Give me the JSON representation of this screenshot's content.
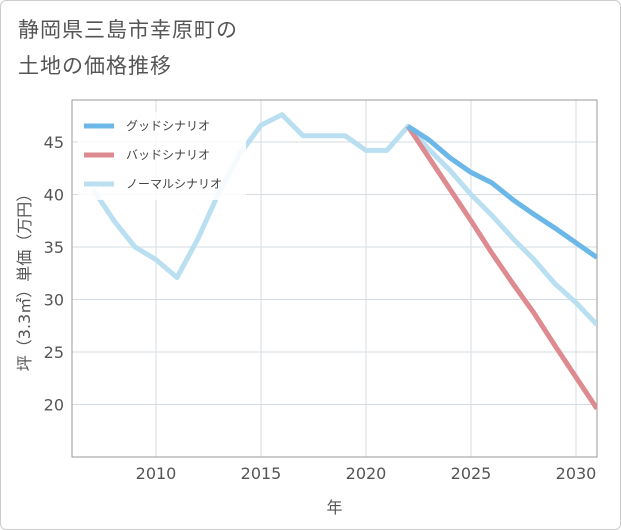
{
  "page": {
    "title_line1": "静岡県三島市幸原町の",
    "title_line2": "土地の価格推移"
  },
  "chart_data": {
    "type": "line",
    "title": "静岡県三島市幸原町の土地の価格推移",
    "xlabel": "年",
    "ylabel": "坪（3.3㎡）単価（万円）",
    "xlim": [
      2006,
      2031
    ],
    "ylim": [
      15,
      49
    ],
    "xticks": [
      2010,
      2015,
      2020,
      2025,
      2030
    ],
    "yticks": [
      20,
      25,
      30,
      35,
      40,
      45
    ],
    "grid": true,
    "legend_position": "top-left",
    "series": [
      {
        "name": "グッドシナリオ",
        "color": "#6bb8e8",
        "x": [
          2022,
          2023,
          2024,
          2025,
          2026,
          2027,
          2028,
          2029,
          2030,
          2031
        ],
        "y": [
          46.5,
          45.2,
          43.5,
          42.1,
          41.1,
          39.5,
          38.1,
          36.8,
          35.4,
          34.0
        ]
      },
      {
        "name": "バッドシナリオ",
        "color": "#dd8a90",
        "x": [
          2022,
          2023,
          2024,
          2025,
          2026,
          2027,
          2028,
          2029,
          2030,
          2031
        ],
        "y": [
          46.5,
          43.5,
          40.5,
          37.5,
          34.4,
          31.5,
          28.7,
          25.6,
          22.6,
          19.6
        ]
      },
      {
        "name": "ノーマルシナリオ",
        "color": "#b9dff0",
        "x": [
          2007,
          2008,
          2009,
          2010,
          2011,
          2012,
          2013,
          2014,
          2015,
          2016,
          2017,
          2018,
          2019,
          2020,
          2021,
          2022,
          2023,
          2024,
          2025,
          2026,
          2027,
          2028,
          2029,
          2030,
          2031
        ],
        "y": [
          40.5,
          37.5,
          35.0,
          33.8,
          32.1,
          35.8,
          40.2,
          43.9,
          46.6,
          47.6,
          45.6,
          45.6,
          45.6,
          44.2,
          44.2,
          46.5,
          44.3,
          42.3,
          40.0,
          38.0,
          35.8,
          33.8,
          31.5,
          29.7,
          27.6
        ]
      }
    ]
  }
}
